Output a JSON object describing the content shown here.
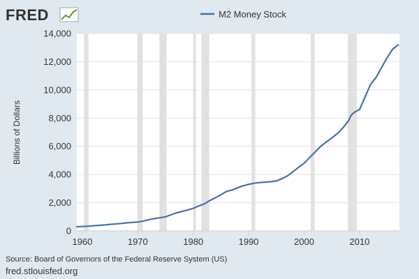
{
  "branding": {
    "logo_text": "FRED",
    "logo_icon": "fred-line-chart-icon"
  },
  "footer": {
    "source": "Source: Board of Governors of the Federal Reserve System (US)",
    "url": "fred.stlouisfed.org"
  },
  "colors": {
    "background": "#e1e9f0",
    "plot_background": "#ffffff",
    "line": "#4572a7",
    "recession": "#e1e1e1",
    "grid": "#e1e1e1"
  },
  "chart_data": {
    "type": "line",
    "title": "",
    "xlabel": "",
    "ylabel": "Billions of Dollars",
    "xlim": [
      1959,
      2017.2
    ],
    "ylim": [
      0,
      14000
    ],
    "x_ticks": [
      1960,
      1970,
      1980,
      1990,
      2000,
      2010
    ],
    "y_ticks": [
      0,
      2000,
      4000,
      6000,
      8000,
      10000,
      12000,
      14000
    ],
    "y_tick_labels": [
      "0",
      "2,000",
      "4,000",
      "6,000",
      "8,000",
      "10,000",
      "12,000",
      "14,000"
    ],
    "grid": "horizontal",
    "legend_position": "top-center",
    "recessions": [
      [
        1960.3,
        1961.1
      ],
      [
        1969.9,
        1970.9
      ],
      [
        1973.9,
        1975.2
      ],
      [
        1980.0,
        1980.5
      ],
      [
        1981.5,
        1982.9
      ],
      [
        1990.5,
        1991.2
      ],
      [
        2001.2,
        2001.9
      ],
      [
        2007.9,
        2009.5
      ]
    ],
    "series": [
      {
        "name": "M2 Money Stock",
        "x": [
          1959,
          1960,
          1961,
          1962,
          1963,
          1964,
          1965,
          1966,
          1967,
          1968,
          1969,
          1970,
          1971,
          1972,
          1973,
          1974,
          1975,
          1976,
          1977,
          1978,
          1979,
          1980,
          1981,
          1982,
          1983,
          1984,
          1985,
          1986,
          1987,
          1988,
          1989,
          1990,
          1991,
          1992,
          1993,
          1994,
          1995,
          1996,
          1997,
          1998,
          1999,
          2000,
          2001,
          2002,
          2003,
          2004,
          2005,
          2006,
          2007,
          2008,
          2008.5,
          2009,
          2010,
          2011,
          2012,
          2013,
          2014,
          2015,
          2016,
          2017
        ],
        "values": [
          290,
          310,
          330,
          360,
          390,
          420,
          460,
          490,
          530,
          570,
          600,
          630,
          700,
          800,
          870,
          930,
          1000,
          1140,
          1280,
          1380,
          1480,
          1600,
          1760,
          1920,
          2150,
          2350,
          2560,
          2800,
          2900,
          3050,
          3200,
          3300,
          3380,
          3430,
          3460,
          3490,
          3540,
          3700,
          3900,
          4200,
          4500,
          4800,
          5200,
          5600,
          6000,
          6300,
          6600,
          6900,
          7300,
          7800,
          8200,
          8400,
          8600,
          9500,
          10400,
          10900,
          11600,
          12300,
          12900,
          13200
        ]
      }
    ]
  }
}
